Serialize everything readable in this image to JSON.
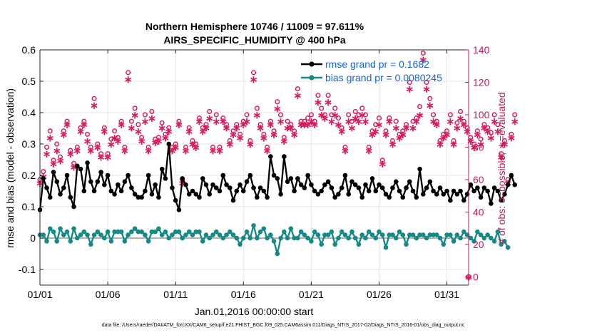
{
  "chart_data": {
    "type": "line",
    "title_line1": "Northern Hemisphere 10746 / 11009 = 97.611%",
    "title_line2": "AIRS_SPECIFIC_HUMIDITY @ 400 hPa",
    "xlabel": "Jan.01,2016 00:00:00 start",
    "ylabel": "rmse and bias (model - observation)",
    "y2label": "# of obs: o=possible; ∗=evaluated",
    "xlim": [
      1,
      32.6
    ],
    "ylim": [
      -0.15,
      0.6
    ],
    "y2lim": [
      -5,
      140
    ],
    "x_ticks": [
      {
        "value": 1,
        "label": "01/01"
      },
      {
        "value": 6,
        "label": "01/06"
      },
      {
        "value": 11,
        "label": "01/11"
      },
      {
        "value": 16,
        "label": "01/16"
      },
      {
        "value": 21,
        "label": "01/21"
      },
      {
        "value": 26,
        "label": "01/26"
      },
      {
        "value": 31,
        "label": "01/31"
      }
    ],
    "y_ticks": [
      {
        "value": -0.1,
        "label": "-0.1"
      },
      {
        "value": 0,
        "label": "0"
      },
      {
        "value": 0.1,
        "label": "0.1"
      },
      {
        "value": 0.2,
        "label": "0.2"
      },
      {
        "value": 0.3,
        "label": "0.3"
      },
      {
        "value": 0.4,
        "label": "0.4"
      },
      {
        "value": 0.5,
        "label": "0.5"
      },
      {
        "value": 0.6,
        "label": "0.6"
      }
    ],
    "y2_ticks": [
      {
        "value": 0,
        "label": "0"
      },
      {
        "value": 20,
        "label": "20"
      },
      {
        "value": 40,
        "label": "40"
      },
      {
        "value": 60,
        "label": "60"
      },
      {
        "value": 80,
        "label": "80"
      },
      {
        "value": 100,
        "label": "100"
      },
      {
        "value": 120,
        "label": "120"
      },
      {
        "value": 140,
        "label": "140"
      }
    ],
    "x_start": 1.0,
    "x_step": 0.25,
    "series": [
      {
        "name": "rmse grand pr = 0.1682",
        "color": "#000000",
        "axis": "left",
        "values": [
          0.09,
          0.19,
          0.16,
          0.13,
          0.21,
          0.18,
          0.14,
          0.16,
          0.2,
          0.13,
          0.1,
          0.23,
          0.22,
          0.15,
          0.24,
          0.18,
          0.15,
          0.18,
          0.21,
          0.17,
          0.2,
          0.15,
          0.14,
          0.17,
          0.15,
          0.18,
          0.2,
          0.16,
          0.14,
          0.13,
          0.13,
          0.15,
          0.2,
          0.14,
          0.17,
          0.13,
          0.22,
          0.19,
          0.3,
          0.16,
          0.12,
          0.09,
          0.19,
          0.17,
          0.14,
          0.15,
          0.14,
          0.13,
          0.19,
          0.17,
          0.14,
          0.17,
          0.16,
          0.15,
          0.2,
          0.17,
          0.16,
          0.12,
          0.15,
          0.17,
          0.15,
          0.18,
          0.2,
          0.16,
          0.13,
          0.16,
          0.15,
          0.13,
          0.26,
          0.2,
          0.19,
          0.14,
          0.26,
          0.18,
          0.19,
          0.15,
          0.19,
          0.17,
          0.16,
          0.2,
          0.17,
          0.15,
          0.14,
          0.15,
          0.17,
          0.18,
          0.16,
          0.13,
          0.14,
          0.16,
          0.2,
          0.14,
          0.18,
          0.17,
          0.16,
          0.13,
          0.17,
          0.15,
          0.19,
          0.15,
          0.17,
          0.16,
          0.14,
          0.13,
          0.16,
          0.18,
          0.15,
          0.13,
          0.16,
          0.18,
          0.15,
          0.13,
          0.22,
          0.14,
          0.16,
          0.18,
          0.15,
          0.14,
          0.16,
          0.14,
          0.15,
          0.12,
          0.15,
          0.14,
          0.15,
          0.12,
          0.14,
          0.17,
          0.15,
          0.16,
          0.13,
          0.16,
          0.15,
          0.11,
          0.16,
          0.15,
          0.12,
          0.14,
          0.17,
          0.2,
          0.17
        ]
      },
      {
        "name": "bias grand pr = 0.0080245",
        "color": "#138a86",
        "axis": "left",
        "values": [
          0.01,
          0.01,
          -0.01,
          0.03,
          0.02,
          -0.01,
          0.03,
          0.01,
          0.02,
          -0.01,
          0.03,
          0.0,
          0.01,
          0.02,
          0.01,
          -0.02,
          0.01,
          0.02,
          0.01,
          0.0,
          0.02,
          -0.01,
          0.02,
          0.02,
          0.02,
          -0.01,
          0.01,
          0.02,
          0.03,
          0.02,
          0.02,
          0.01,
          -0.01,
          0.02,
          0.02,
          0.03,
          0.01,
          0.02,
          0.0,
          0.01,
          0.02,
          0.02,
          0.0,
          0.01,
          0.02,
          0.01,
          0.02,
          0.02,
          -0.01,
          0.01,
          0.0,
          0.01,
          0.02,
          0.01,
          0.0,
          0.01,
          0.02,
          0.01,
          0.0,
          -0.02,
          0.0,
          0.02,
          0.0,
          0.04,
          0.0,
          0.02,
          0.03,
          0.0,
          0.01,
          -0.01,
          -0.05,
          0.0,
          0.02,
          0.0,
          0.03,
          0.0,
          0.0,
          0.02,
          0.01,
          0.0,
          -0.01,
          0.02,
          0.01,
          -0.02,
          0.01,
          0.01,
          0.02,
          -0.02,
          0.0,
          0.02,
          0.01,
          0.0,
          0.02,
          0.0,
          -0.02,
          0.01,
          0.0,
          0.02,
          0.01,
          0.0,
          0.02,
          0.01,
          -0.03,
          0.01,
          0.01,
          0.0,
          0.02,
          0.01,
          -0.02,
          0.01,
          0.01,
          0.0,
          0.01,
          0.01,
          0.0,
          0.01,
          0.01,
          0.01,
          0.0,
          -0.02,
          0.01,
          0.01,
          -0.01,
          0.01,
          0.0,
          0.02,
          0.01,
          0.0,
          -0.01,
          0.02,
          0.01,
          0.0,
          0.01,
          0.0,
          -0.01,
          0.02,
          -0.02,
          -0.01,
          -0.03
        ]
      },
      {
        "name": "possible obs",
        "color": "#d81b60",
        "axis": "right",
        "marker": "o",
        "values": [
          60,
          65,
          80,
          90,
          72,
          82,
          74,
          90,
          96,
          78,
          70,
          80,
          92,
          96,
          88,
          80,
          110,
          82,
          76,
          92,
          76,
          85,
          90,
          86,
          96,
          80,
          126,
          96,
          104,
          94,
          86,
          100,
          80,
          102,
          85,
          86,
          95,
          88,
          92,
          80,
          82,
          96,
          60,
          80,
          92,
          84,
          82,
          98,
          92,
          94,
          102,
          80,
          100,
          80,
          98,
          94,
          84,
          90,
          94,
          88,
          96,
          100,
          84,
          126,
          104,
          94,
          88,
          80,
          96,
          90,
          108,
          100,
          86,
          96,
          94,
          90,
          116,
          96,
          96,
          98,
          100,
          96,
          112,
          104,
          100,
          112,
          100,
          104,
          98,
          92,
          80,
          100,
          96,
          102,
          100,
          104,
          100,
          80,
          90,
          94,
          98,
          72,
          90,
          98,
          84,
          96,
          88,
          90,
          94,
          120,
          96,
          98,
          105,
          138,
          120,
          110,
          100,
          96,
          84,
          88,
          90,
          100,
          84,
          95,
          102,
          96,
          92,
          86,
          82,
          90,
          85,
          94,
          92,
          89,
          100,
          94,
          76,
          84,
          60,
          88,
          100
        ]
      },
      {
        "name": "evaluated obs",
        "color": "#d81b60",
        "axis": "right",
        "marker": "*",
        "values": [
          58,
          62,
          76,
          86,
          70,
          78,
          72,
          88,
          94,
          76,
          68,
          78,
          90,
          94,
          84,
          78,
          106,
          80,
          74,
          90,
          74,
          82,
          86,
          84,
          94,
          78,
          122,
          92,
          100,
          90,
          84,
          96,
          78,
          98,
          83,
          84,
          92,
          86,
          90,
          78,
          80,
          94,
          58,
          78,
          90,
          82,
          80,
          96,
          90,
          92,
          98,
          78,
          96,
          78,
          96,
          92,
          82,
          88,
          92,
          86,
          94,
          96,
          82,
          122,
          100,
          92,
          86,
          78,
          94,
          88,
          104,
          96,
          84,
          92,
          92,
          88,
          112,
          94,
          94,
          94,
          96,
          94,
          108,
          100,
          98,
          108,
          96,
          100,
          94,
          90,
          78,
          96,
          92,
          98,
          96,
          100,
          96,
          78,
          88,
          90,
          94,
          70,
          88,
          96,
          82,
          92,
          86,
          88,
          92,
          116,
          92,
          96,
          100,
          134,
          116,
          106,
          96,
          94,
          82,
          86,
          88,
          96,
          82,
          92,
          98,
          94,
          90,
          84,
          80,
          88,
          82,
          92,
          90,
          86,
          96,
          90,
          74,
          82,
          58,
          86,
          96
        ]
      }
    ],
    "final_point": {
      "x": 32.6,
      "y2": 0,
      "color": "#d81b60"
    },
    "legend": [
      {
        "label": "rmse grand pr = 0.1682",
        "color": "#000000"
      },
      {
        "label": "bias grand pr = 0.0080245",
        "color": "#138a86"
      }
    ],
    "legend_position": "top-right",
    "zero_line": true
  },
  "footer": {
    "data_file": "data file: /Users/raeder/DAI/ATM_forcXX/CAM6_setup/f.e21.FHIST_BGC.f09_025.CAM6assim.011/Diags_NTrS_2017-02/Diags_NTrS_2016-01/obs_diag_output.nc"
  }
}
